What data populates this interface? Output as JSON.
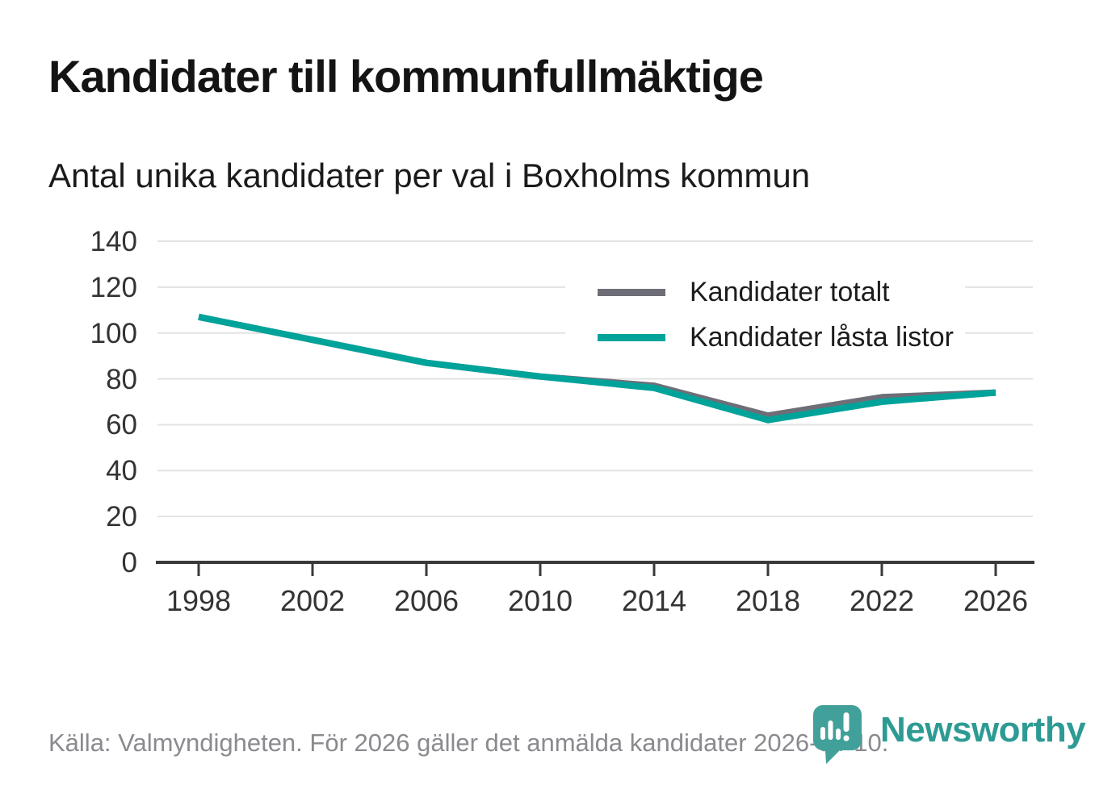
{
  "header": {
    "title": "Kandidater till kommunfullmäktige",
    "subtitle": "Antal unika kandidater per val i Boxholms kommun"
  },
  "chart_data": {
    "type": "line",
    "title": "Kandidater till kommunfullmäktige",
    "subtitle": "Antal unika kandidater per val i Boxholms kommun",
    "categories": [
      1998,
      2002,
      2006,
      2010,
      2014,
      2018,
      2022,
      2026
    ],
    "series": [
      {
        "name": "Kandidater totalt",
        "color": "#6e6e78",
        "values": [
          107,
          97,
          87,
          81,
          77,
          64,
          72,
          74
        ]
      },
      {
        "name": "Kandidater låsta listor",
        "color": "#00a39a",
        "values": [
          107,
          97,
          87,
          81,
          76,
          62,
          70,
          74
        ]
      }
    ],
    "ylim": [
      0,
      140
    ],
    "yticks": [
      0,
      20,
      40,
      60,
      80,
      100,
      120,
      140
    ],
    "grid": true,
    "legend_position": "inside-top-right"
  },
  "source": {
    "text": "Källa: Valmyndigheten. För 2026 gäller det anmälda kandidater 2026-04-10."
  },
  "branding": {
    "wordmark": "Newsworthy",
    "logo_icon": "newsworthy-speech-bubble-bar-chart-icon",
    "teal": "#2d9b94"
  }
}
